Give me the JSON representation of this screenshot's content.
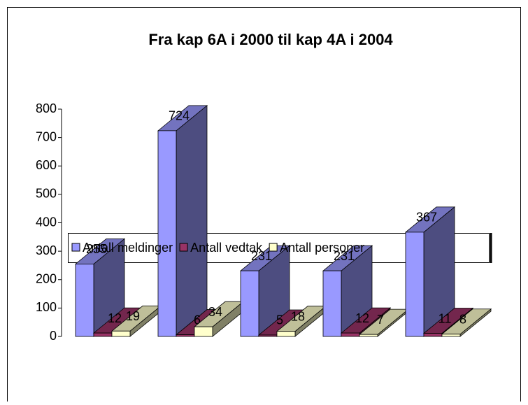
{
  "chart_data": {
    "type": "bar3d",
    "title": "Fra kap 6A i 2000 til kap 4A i 2004",
    "categories": [
      null,
      null,
      null,
      null,
      null
    ],
    "series": [
      {
        "name": "Antall meldinger",
        "color": "#9999ff",
        "values": [
          255,
          724,
          231,
          231,
          367
        ]
      },
      {
        "name": "Antall vedtak",
        "color": "#993366",
        "values": [
          12,
          6,
          5,
          12,
          11
        ]
      },
      {
        "name": "Antall personer",
        "color": "#ffffcc",
        "values": [
          19,
          34,
          18,
          7,
          8
        ]
      }
    ],
    "ylim": [
      0,
      800
    ],
    "yticks": [
      0,
      100,
      200,
      300,
      400,
      500,
      600,
      700,
      800
    ]
  }
}
